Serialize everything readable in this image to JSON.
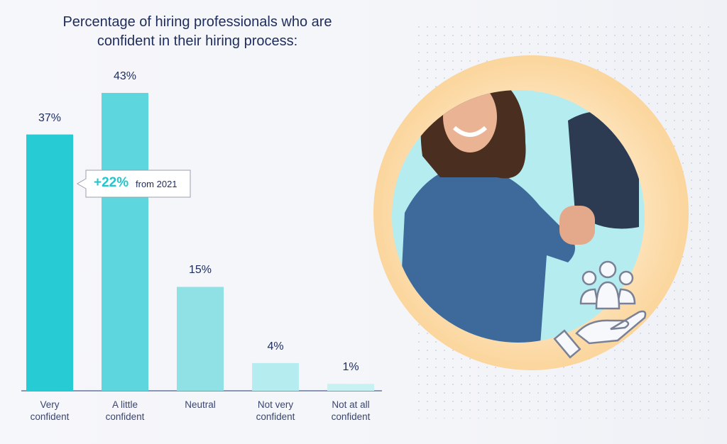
{
  "chart_data": {
    "type": "bar",
    "title": "Percentage of hiring professionals who are confident in their hiring process:",
    "categories": [
      "Very confident",
      "A little confident",
      "Neutral",
      "Not very confident",
      "Not at all confident"
    ],
    "values": [
      37,
      43,
      15,
      4,
      1
    ],
    "value_labels": [
      "37%",
      "43%",
      "15%",
      "4%",
      "1%"
    ],
    "colors": [
      "#27cbd3",
      "#5dd6dd",
      "#8fe1e5",
      "#b4ecef",
      "#c8f1f3"
    ],
    "annotation": {
      "value_text": "+22%",
      "text": "from 2021"
    }
  }
}
